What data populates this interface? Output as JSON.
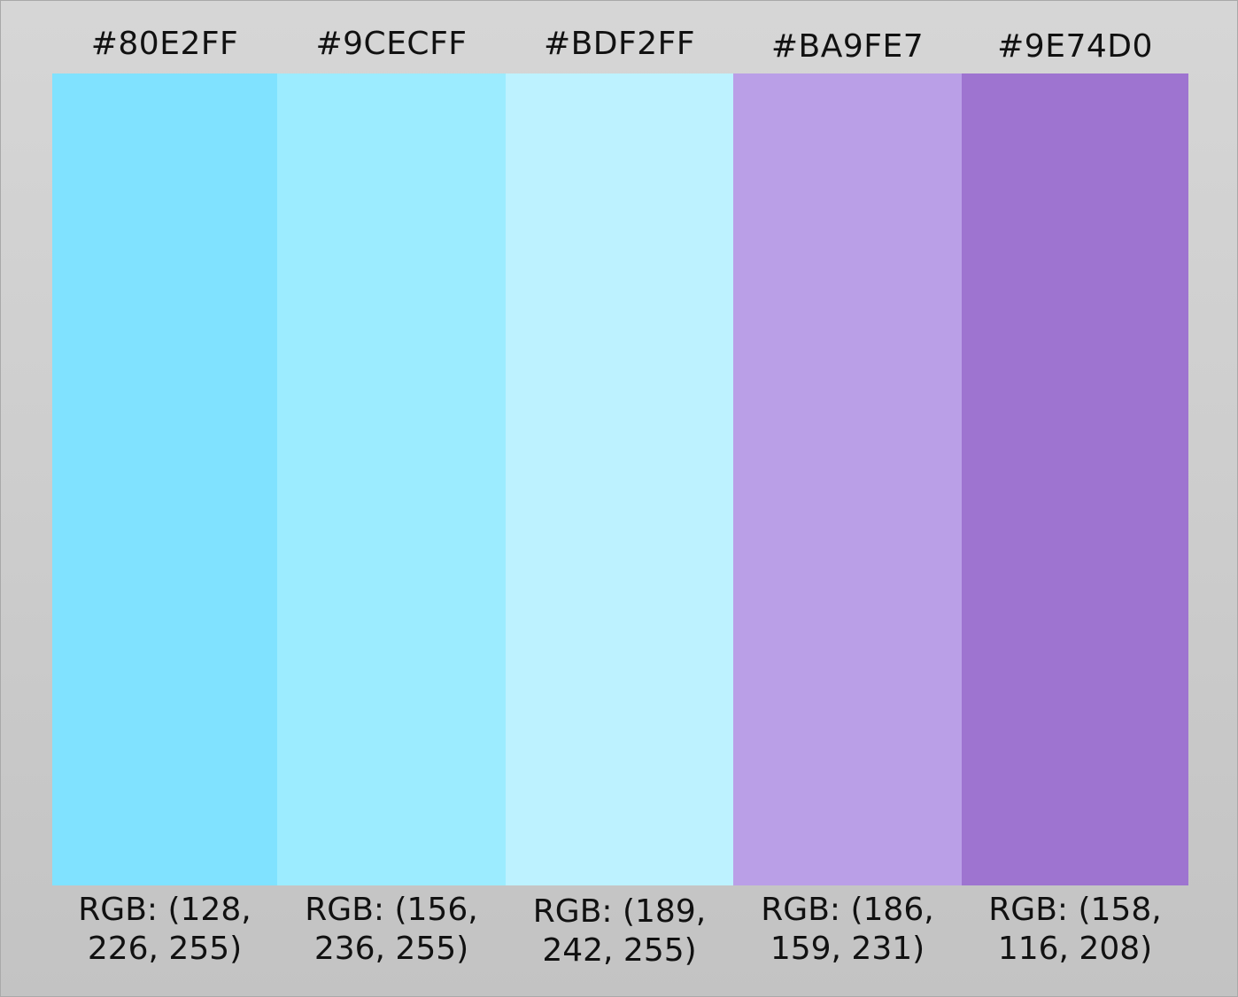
{
  "swatches": [
    {
      "hex": "#80E2FF",
      "rgb_line1": "RGB: (128,",
      "rgb_line2": "226, 255)",
      "color": "#80E2FF"
    },
    {
      "hex": "#9CECFF",
      "rgb_line1": "RGB: (156,",
      "rgb_line2": "236, 255)",
      "color": "#9CECFF"
    },
    {
      "hex": "#BDF2FF",
      "rgb_line1": "RGB: (189,",
      "rgb_line2": "242, 255)",
      "color": "#BDF2FF"
    },
    {
      "hex": "#BA9FE7",
      "rgb_line1": "RGB: (186,",
      "rgb_line2": "159, 231)",
      "color": "#BA9FE7"
    },
    {
      "hex": "#9E74D0",
      "rgb_line1": "RGB: (158,",
      "rgb_line2": "116, 208)",
      "color": "#9E74D0"
    }
  ]
}
